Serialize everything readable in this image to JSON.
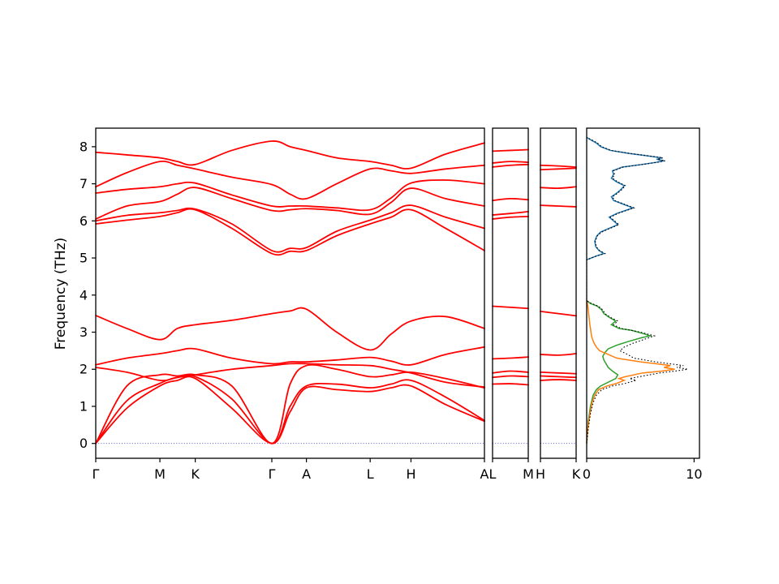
{
  "figure": {
    "background": "#ffffff",
    "ylabel": "Frequency (THz)",
    "yticks": [
      0,
      1,
      2,
      3,
      4,
      5,
      6,
      7,
      8
    ],
    "ylim": [
      -0.4,
      8.5
    ],
    "band_color": "#ff0000",
    "zero_line_color": "#3b3bcc",
    "dos_colors": {
      "total": "#000000",
      "partial_1": "#1f77b4",
      "partial_2": "#2ca02c",
      "partial_3": "#ff7f0e"
    }
  },
  "chart_data": [
    {
      "id": "bands-main",
      "type": "line",
      "title": "",
      "xtick_labels": [
        "Γ",
        "M",
        "K",
        "Γ",
        "A",
        "L",
        "H",
        "A"
      ],
      "xtick_pos": [
        0,
        0.165,
        0.256,
        0.453,
        0.542,
        0.706,
        0.811,
        1.0
      ],
      "ylabel": "Frequency (THz)",
      "ylim": [
        -0.4,
        8.5
      ],
      "color": "#ff0000",
      "x": [
        0,
        0.08,
        0.165,
        0.21,
        0.256,
        0.35,
        0.453,
        0.5,
        0.542,
        0.62,
        0.706,
        0.76,
        0.811,
        0.9,
        1.0
      ],
      "bands": [
        [
          0,
          0.95,
          1.55,
          1.7,
          1.75,
          0.95,
          0,
          0.85,
          1.5,
          1.45,
          1.4,
          1.5,
          1.55,
          1.05,
          0.6
        ],
        [
          0,
          1.15,
          1.62,
          1.78,
          1.8,
          1.2,
          0,
          1.0,
          1.55,
          1.6,
          1.5,
          1.6,
          1.7,
          1.25,
          0.62
        ],
        [
          0,
          1.55,
          1.85,
          1.82,
          1.85,
          1.55,
          0,
          1.6,
          2.1,
          2.0,
          1.8,
          1.85,
          1.92,
          1.75,
          1.5
        ],
        [
          2.05,
          1.92,
          1.7,
          1.78,
          1.85,
          2.0,
          2.1,
          2.15,
          2.15,
          2.12,
          2.1,
          2.0,
          1.9,
          1.65,
          1.52
        ],
        [
          2.12,
          2.3,
          2.42,
          2.5,
          2.55,
          2.3,
          2.15,
          2.2,
          2.2,
          2.25,
          2.32,
          2.22,
          2.12,
          2.4,
          2.6
        ],
        [
          3.45,
          3.1,
          2.8,
          3.1,
          3.2,
          3.32,
          3.5,
          3.57,
          3.62,
          3.0,
          2.52,
          2.95,
          3.3,
          3.42,
          3.1
        ],
        [
          5.92,
          6.02,
          6.12,
          6.22,
          6.3,
          5.8,
          5.12,
          5.18,
          5.2,
          5.6,
          5.92,
          6.1,
          6.3,
          5.8,
          5.2
        ],
        [
          6.0,
          6.15,
          6.22,
          6.28,
          6.32,
          5.92,
          5.2,
          5.26,
          5.28,
          5.72,
          6.02,
          6.22,
          6.42,
          6.1,
          5.8
        ],
        [
          6.05,
          6.4,
          6.52,
          6.72,
          6.9,
          6.6,
          6.28,
          6.3,
          6.33,
          6.28,
          6.18,
          6.5,
          6.88,
          6.6,
          6.4
        ],
        [
          6.75,
          6.85,
          6.92,
          7.0,
          7.02,
          6.7,
          6.4,
          6.4,
          6.4,
          6.35,
          6.3,
          6.62,
          7.02,
          7.1,
          7.0
        ],
        [
          6.92,
          7.3,
          7.6,
          7.5,
          7.4,
          7.18,
          6.98,
          6.72,
          6.6,
          7.0,
          7.4,
          7.35,
          7.28,
          7.4,
          7.5
        ],
        [
          7.85,
          7.78,
          7.7,
          7.6,
          7.52,
          7.9,
          8.15,
          8.0,
          7.9,
          7.7,
          7.6,
          7.5,
          7.42,
          7.8,
          8.1
        ]
      ]
    },
    {
      "id": "bands-l-m",
      "type": "line",
      "xtick_labels": [
        "L",
        "M"
      ],
      "xtick_pos": [
        0,
        1
      ],
      "color": "#ff0000",
      "x": [
        0,
        0.5,
        1
      ],
      "bands": [
        [
          1.6,
          1.61,
          1.58
        ],
        [
          1.78,
          1.82,
          1.8
        ],
        [
          1.9,
          1.95,
          1.92
        ],
        [
          2.28,
          2.3,
          2.33
        ],
        [
          3.7,
          3.67,
          3.64
        ],
        [
          6.05,
          6.1,
          6.12
        ],
        [
          6.16,
          6.2,
          6.25
        ],
        [
          6.55,
          6.6,
          6.57
        ],
        [
          7.45,
          7.5,
          7.52
        ],
        [
          7.56,
          7.6,
          7.58
        ],
        [
          7.88,
          7.9,
          7.92
        ]
      ]
    },
    {
      "id": "bands-h-k",
      "type": "line",
      "xtick_labels": [
        "H",
        "K"
      ],
      "xtick_pos": [
        0,
        1
      ],
      "color": "#ff0000",
      "x": [
        0,
        0.5,
        1
      ],
      "bands": [
        [
          1.7,
          1.72,
          1.7
        ],
        [
          1.82,
          1.8,
          1.78
        ],
        [
          1.92,
          1.9,
          1.88
        ],
        [
          2.4,
          2.38,
          2.42
        ],
        [
          3.56,
          3.5,
          3.44
        ],
        [
          6.42,
          6.4,
          6.38
        ],
        [
          6.9,
          6.88,
          6.92
        ],
        [
          7.38,
          7.4,
          7.42
        ],
        [
          7.5,
          7.48,
          7.45
        ]
      ]
    },
    {
      "id": "dos",
      "type": "line",
      "xtick_labels": [
        "0",
        "10"
      ],
      "xtick_vals": [
        0,
        10
      ],
      "xlim": [
        0,
        10.5
      ],
      "series": [
        {
          "name": "partial-1",
          "color": "#1f77b4",
          "style": "solid",
          "points": [
            [
              4.95,
              0
            ],
            [
              5.05,
              0.85
            ],
            [
              5.12,
              1.6
            ],
            [
              5.2,
              1.15
            ],
            [
              5.3,
              0.85
            ],
            [
              5.45,
              0.75
            ],
            [
              5.6,
              0.95
            ],
            [
              5.7,
              1.3
            ],
            [
              5.8,
              2.1
            ],
            [
              5.9,
              2.9
            ],
            [
              6.0,
              2.5
            ],
            [
              6.1,
              2.1
            ],
            [
              6.2,
              2.8
            ],
            [
              6.3,
              3.8
            ],
            [
              6.35,
              4.3
            ],
            [
              6.45,
              3.4
            ],
            [
              6.55,
              2.5
            ],
            [
              6.65,
              2.3
            ],
            [
              6.75,
              2.8
            ],
            [
              6.85,
              3.2
            ],
            [
              6.95,
              3.5
            ],
            [
              7.05,
              2.8
            ],
            [
              7.15,
              2.3
            ],
            [
              7.25,
              2.5
            ],
            [
              7.35,
              2.4
            ],
            [
              7.45,
              3.3
            ],
            [
              7.52,
              5.1
            ],
            [
              7.58,
              6.5
            ],
            [
              7.62,
              7.2
            ],
            [
              7.66,
              6.5
            ],
            [
              7.7,
              7.0
            ],
            [
              7.76,
              5.5
            ],
            [
              7.82,
              3.9
            ],
            [
              7.9,
              2.2
            ],
            [
              8.0,
              1.3
            ],
            [
              8.1,
              0.9
            ],
            [
              8.18,
              0.4
            ],
            [
              8.25,
              0
            ]
          ]
        },
        {
          "name": "partial-2",
          "color": "#2ca02c",
          "style": "solid",
          "points": [
            [
              0,
              0
            ],
            [
              0.6,
              0.15
            ],
            [
              1.0,
              0.35
            ],
            [
              1.3,
              0.6
            ],
            [
              1.45,
              0.9
            ],
            [
              1.55,
              1.3
            ],
            [
              1.65,
              2.0
            ],
            [
              1.75,
              2.7
            ],
            [
              1.85,
              2.9
            ],
            [
              1.95,
              2.4
            ],
            [
              2.05,
              2.0
            ],
            [
              2.15,
              1.8
            ],
            [
              2.25,
              1.6
            ],
            [
              2.35,
              1.5
            ],
            [
              2.45,
              1.7
            ],
            [
              2.55,
              2.0
            ],
            [
              2.65,
              2.8
            ],
            [
              2.75,
              3.9
            ],
            [
              2.85,
              5.1
            ],
            [
              2.9,
              5.9
            ],
            [
              2.95,
              5.4
            ],
            [
              3.05,
              4.2
            ],
            [
              3.1,
              3.0
            ],
            [
              3.2,
              2.3
            ],
            [
              3.3,
              2.7
            ],
            [
              3.4,
              2.1
            ],
            [
              3.5,
              1.6
            ],
            [
              3.6,
              1.4
            ],
            [
              3.7,
              1.0
            ],
            [
              3.78,
              0.3
            ],
            [
              3.85,
              0
            ]
          ]
        },
        {
          "name": "partial-3",
          "color": "#ff7f0e",
          "style": "solid",
          "points": [
            [
              0,
              0
            ],
            [
              0.4,
              0.1
            ],
            [
              0.8,
              0.3
            ],
            [
              1.1,
              0.5
            ],
            [
              1.3,
              0.75
            ],
            [
              1.45,
              1.1
            ],
            [
              1.55,
              1.9
            ],
            [
              1.62,
              2.8
            ],
            [
              1.7,
              3.5
            ],
            [
              1.75,
              3.0
            ],
            [
              1.8,
              3.6
            ],
            [
              1.9,
              5.2
            ],
            [
              1.95,
              7.0
            ],
            [
              2.0,
              8.2
            ],
            [
              2.05,
              7.2
            ],
            [
              2.1,
              7.8
            ],
            [
              2.2,
              5.0
            ],
            [
              2.3,
              2.8
            ],
            [
              2.4,
              2.0
            ],
            [
              2.5,
              1.2
            ],
            [
              2.6,
              0.9
            ],
            [
              2.7,
              0.7
            ],
            [
              2.8,
              0.55
            ],
            [
              2.9,
              0.45
            ],
            [
              3.0,
              0.4
            ],
            [
              3.2,
              0.3
            ],
            [
              3.4,
              0.22
            ],
            [
              3.6,
              0.15
            ],
            [
              3.75,
              0.08
            ],
            [
              3.85,
              0
            ]
          ]
        },
        {
          "name": "total",
          "color": "#000000",
          "style": "dotted",
          "points": [
            [
              0,
              0
            ],
            [
              0.4,
              0.15
            ],
            [
              0.8,
              0.35
            ],
            [
              1.1,
              0.6
            ],
            [
              1.3,
              0.9
            ],
            [
              1.45,
              1.4
            ],
            [
              1.55,
              2.4
            ],
            [
              1.62,
              3.6
            ],
            [
              1.7,
              4.6
            ],
            [
              1.75,
              4.0
            ],
            [
              1.8,
              4.9
            ],
            [
              1.9,
              6.8
            ],
            [
              1.95,
              8.2
            ],
            [
              2.0,
              9.4
            ],
            [
              2.05,
              8.4
            ],
            [
              2.1,
              9.0
            ],
            [
              2.2,
              6.4
            ],
            [
              2.3,
              4.4
            ],
            [
              2.4,
              3.8
            ],
            [
              2.5,
              3.1
            ],
            [
              2.6,
              3.5
            ],
            [
              2.7,
              4.3
            ],
            [
              2.8,
              5.3
            ],
            [
              2.9,
              6.3
            ],
            [
              3.0,
              5.0
            ],
            [
              3.1,
              3.2
            ],
            [
              3.2,
              2.5
            ],
            [
              3.3,
              2.9
            ],
            [
              3.4,
              2.2
            ],
            [
              3.5,
              1.7
            ],
            [
              3.6,
              1.5
            ],
            [
              3.7,
              1.1
            ],
            [
              3.78,
              0.4
            ],
            [
              3.85,
              0
            ],
            [
              4.95,
              0
            ],
            [
              5.05,
              0.9
            ],
            [
              5.12,
              1.7
            ],
            [
              5.2,
              1.2
            ],
            [
              5.3,
              0.9
            ],
            [
              5.45,
              0.8
            ],
            [
              5.6,
              1.0
            ],
            [
              5.7,
              1.4
            ],
            [
              5.8,
              2.2
            ],
            [
              5.9,
              3.0
            ],
            [
              6.0,
              2.6
            ],
            [
              6.1,
              2.2
            ],
            [
              6.2,
              2.9
            ],
            [
              6.3,
              3.9
            ],
            [
              6.35,
              4.4
            ],
            [
              6.45,
              3.5
            ],
            [
              6.55,
              2.6
            ],
            [
              6.65,
              2.4
            ],
            [
              6.75,
              2.9
            ],
            [
              6.85,
              3.3
            ],
            [
              6.95,
              3.6
            ],
            [
              7.05,
              2.9
            ],
            [
              7.15,
              2.4
            ],
            [
              7.25,
              2.6
            ],
            [
              7.35,
              2.5
            ],
            [
              7.45,
              3.4
            ],
            [
              7.52,
              5.2
            ],
            [
              7.58,
              6.6
            ],
            [
              7.62,
              7.3
            ],
            [
              7.66,
              6.6
            ],
            [
              7.7,
              7.1
            ],
            [
              7.76,
              5.6
            ],
            [
              7.82,
              4.0
            ],
            [
              7.9,
              2.3
            ],
            [
              8.0,
              1.4
            ],
            [
              8.1,
              1.0
            ],
            [
              8.18,
              0.5
            ],
            [
              8.25,
              0
            ]
          ]
        }
      ]
    }
  ]
}
